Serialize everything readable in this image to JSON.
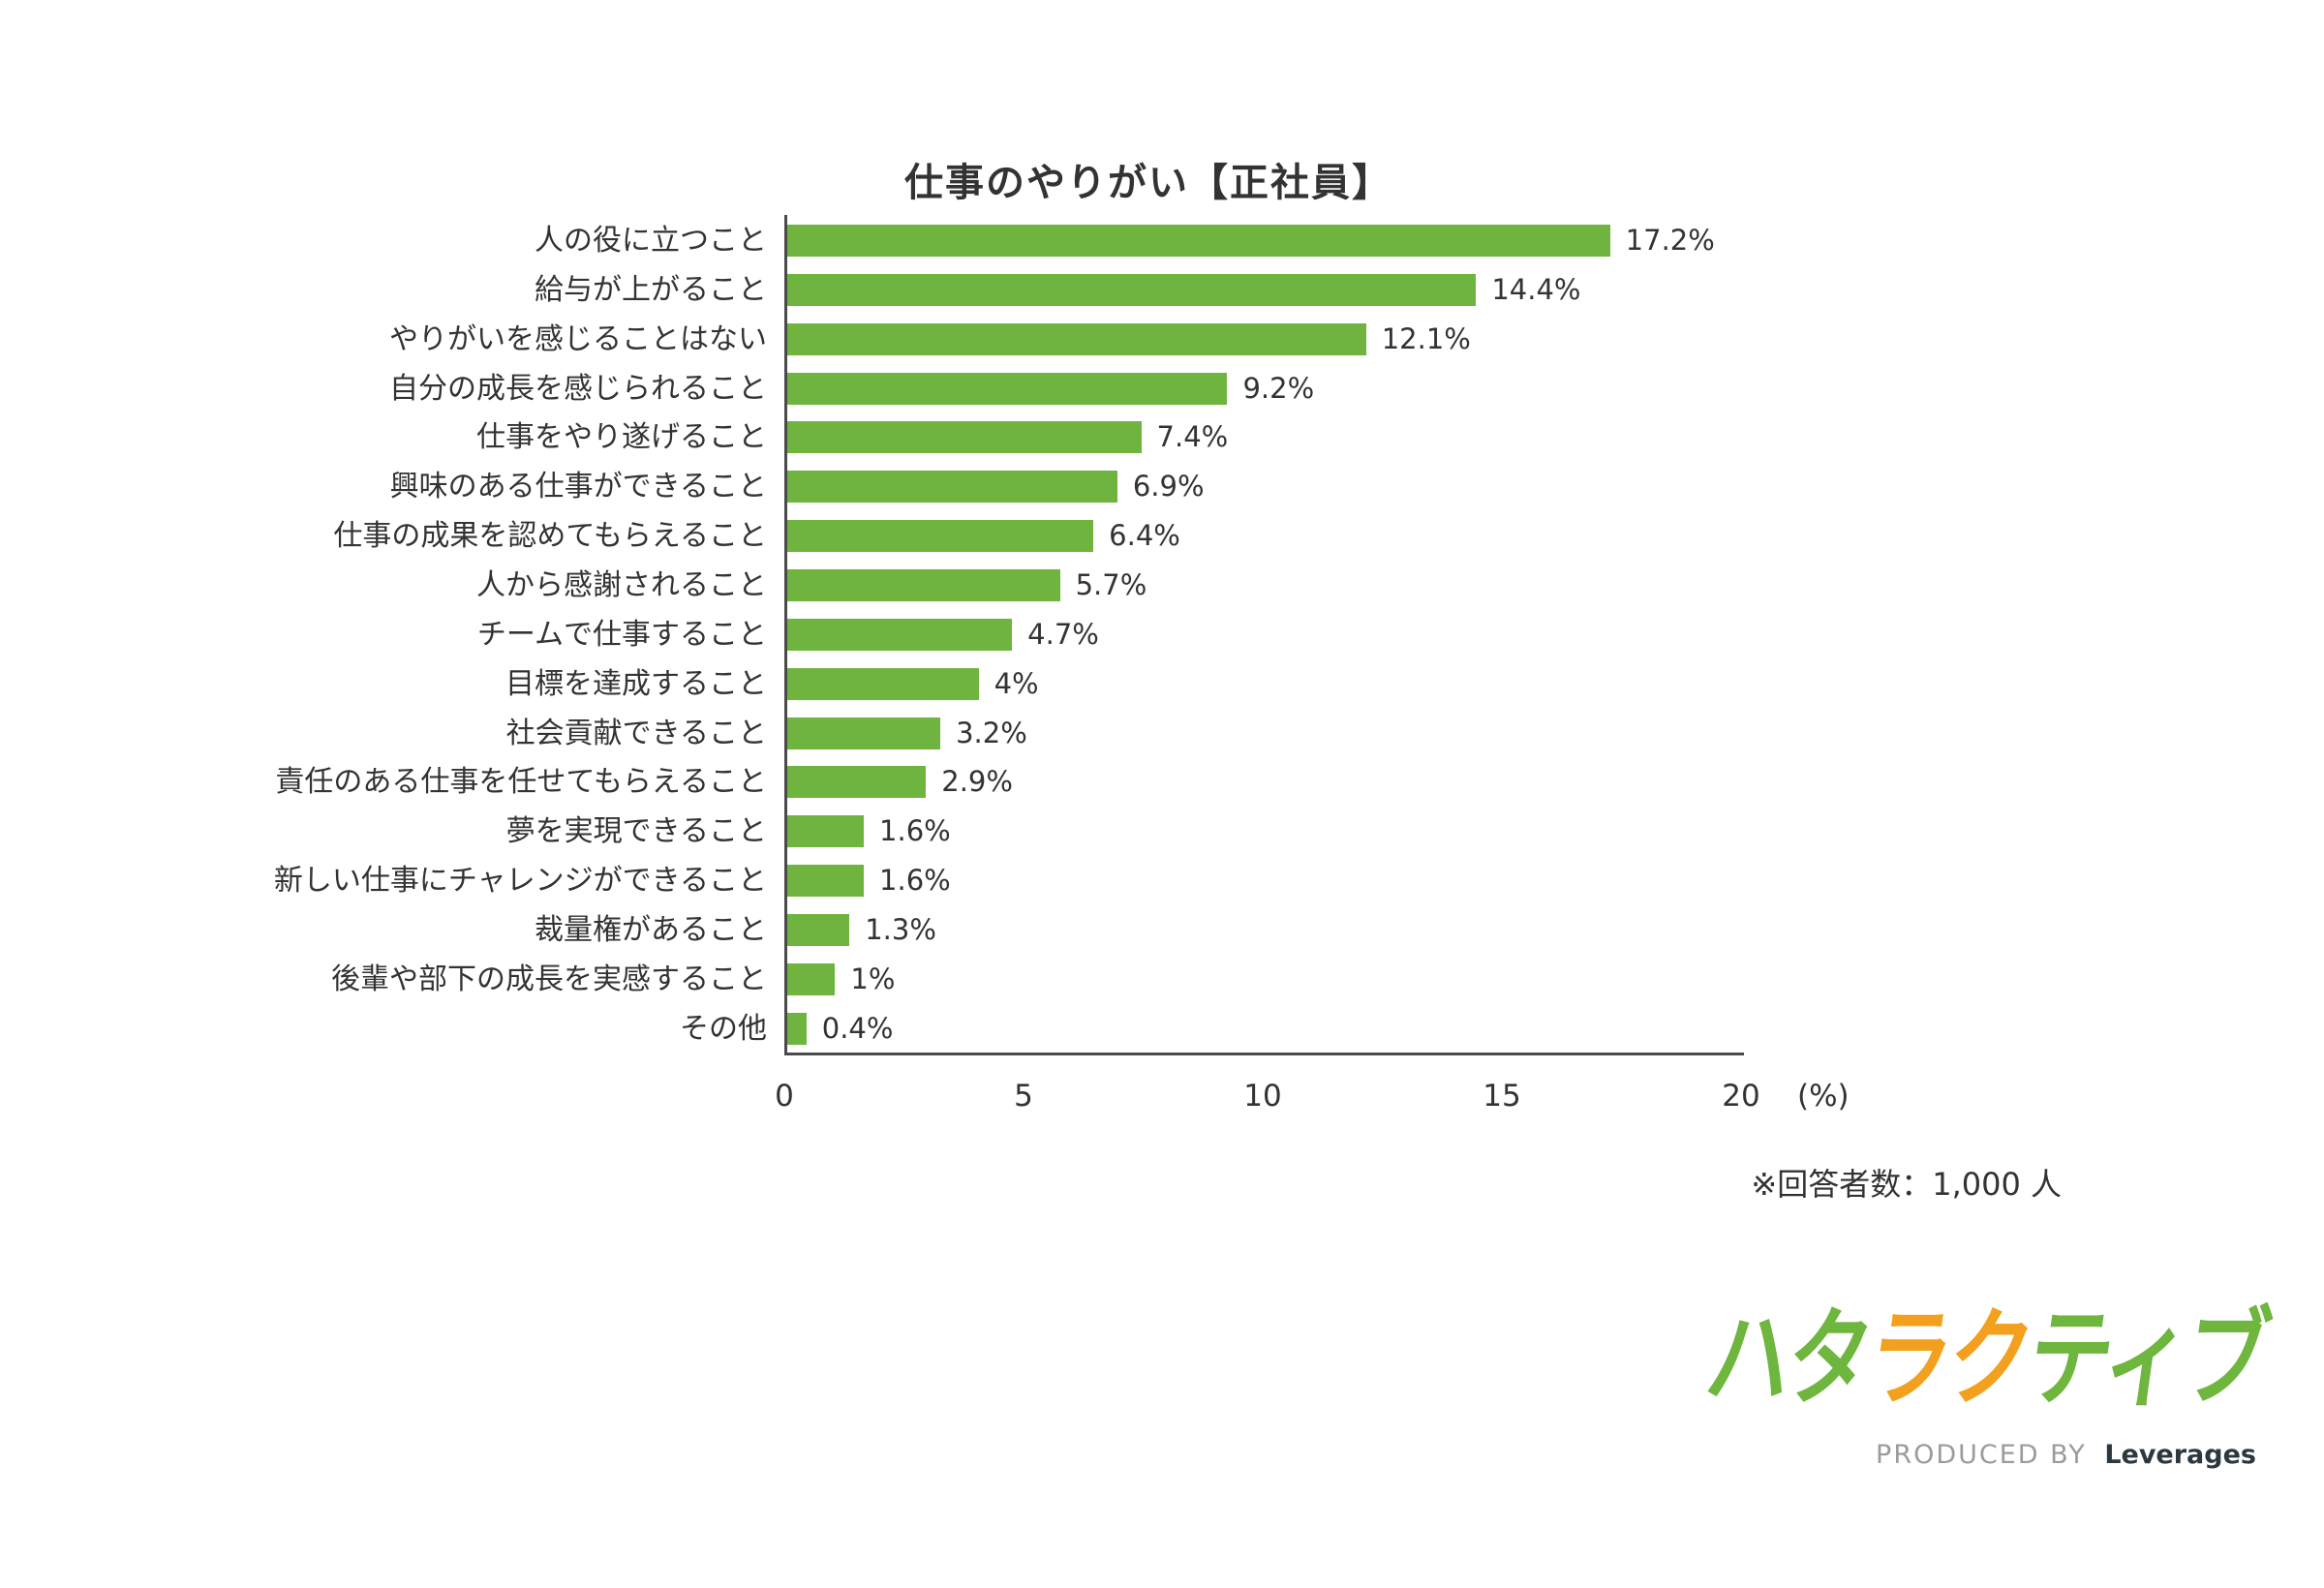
{
  "chart_data": {
    "type": "bar",
    "orientation": "horizontal",
    "title": "仕事のやりがい【正社員】",
    "categories": [
      "人の役に立つこと",
      "給与が上がること",
      "やりがいを感じることはない",
      "自分の成長を感じられること",
      "仕事をやり遂げること",
      "興味のある仕事ができること",
      "仕事の成果を認めてもらえること",
      "人から感謝されること",
      "チームで仕事すること",
      "目標を達成すること",
      "社会貢献できること",
      "責任のある仕事を任せてもらえること",
      "夢を実現できること",
      "新しい仕事にチャレンジができること",
      "裁量権があること",
      "後輩や部下の成長を実感すること",
      "その他"
    ],
    "values": [
      17.2,
      14.4,
      12.1,
      9.2,
      7.4,
      6.9,
      6.4,
      5.7,
      4.7,
      4,
      3.2,
      2.9,
      1.6,
      1.6,
      1.3,
      1,
      0.4
    ],
    "value_labels": [
      "17.2%",
      "14.4%",
      "12.1%",
      "9.2%",
      "7.4%",
      "6.9%",
      "6.4%",
      "5.7%",
      "4.7%",
      "4%",
      "3.2%",
      "2.9%",
      "1.6%",
      "1.6%",
      "1.3%",
      "1%",
      "0.4%"
    ],
    "xlabel": "(%)",
    "xlim": [
      0,
      20
    ],
    "xticks": [
      0,
      5,
      10,
      15,
      20
    ],
    "bar_color": "#6FB43F",
    "grid": false,
    "legend": null
  },
  "note": "※回答者数：1,000 人",
  "logo": {
    "text": "ハタラクティブ",
    "char_colors": [
      "green",
      "green",
      "orange",
      "orange",
      "green",
      "green",
      "green"
    ],
    "green": "#6EB63E",
    "orange": "#F2A01E",
    "produced_by": "PRODUCED BY",
    "brand": "Leverages"
  },
  "colors": {
    "bar": "#6FB43F",
    "axis": "#4A4A4A",
    "text": "#333333"
  }
}
